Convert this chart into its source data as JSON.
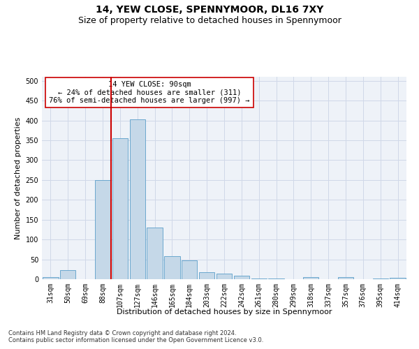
{
  "title": "14, YEW CLOSE, SPENNYMOOR, DL16 7XY",
  "subtitle": "Size of property relative to detached houses in Spennymoor",
  "xlabel": "Distribution of detached houses by size in Spennymoor",
  "ylabel": "Number of detached properties",
  "footnote1": "Contains HM Land Registry data © Crown copyright and database right 2024.",
  "footnote2": "Contains public sector information licensed under the Open Government Licence v3.0.",
  "categories": [
    "31sqm",
    "50sqm",
    "69sqm",
    "88sqm",
    "107sqm",
    "127sqm",
    "146sqm",
    "165sqm",
    "184sqm",
    "203sqm",
    "222sqm",
    "242sqm",
    "261sqm",
    "280sqm",
    "299sqm",
    "318sqm",
    "337sqm",
    "357sqm",
    "376sqm",
    "395sqm",
    "414sqm"
  ],
  "values": [
    5,
    22,
    0,
    250,
    355,
    403,
    130,
    58,
    48,
    17,
    14,
    8,
    1,
    1,
    0,
    6,
    0,
    6,
    0,
    1,
    3
  ],
  "bar_color": "#c5d8e8",
  "bar_edge_color": "#5a9ec9",
  "vline_x_index": 3,
  "vline_color": "#cc0000",
  "annotation_text": "14 YEW CLOSE: 90sqm\n← 24% of detached houses are smaller (311)\n76% of semi-detached houses are larger (997) →",
  "annotation_box_color": "#ffffff",
  "annotation_box_edge": "#cc0000",
  "ylim": [
    0,
    510
  ],
  "yticks": [
    0,
    50,
    100,
    150,
    200,
    250,
    300,
    350,
    400,
    450,
    500
  ],
  "background_color": "#ffffff",
  "grid_color": "#d0d8e8",
  "title_fontsize": 10,
  "subtitle_fontsize": 9,
  "axis_label_fontsize": 8,
  "tick_fontsize": 7,
  "annot_fontsize": 7.5
}
